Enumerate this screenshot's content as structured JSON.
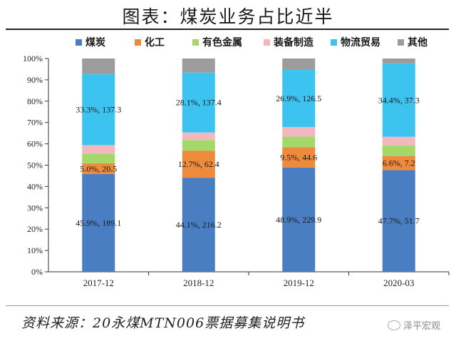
{
  "title": "图表：煤炭业务占比近半",
  "source": "资料来源：20永煤MTN006票据募集说明书",
  "brand": "泽平宏观",
  "chart_data": {
    "type": "bar",
    "stacked": true,
    "categories": [
      "2017-12",
      "2018-12",
      "2019-12",
      "2020-03"
    ],
    "ylim": [
      0,
      100
    ],
    "yticks": [
      "0%",
      "10%",
      "20%",
      "30%",
      "40%",
      "50%",
      "60%",
      "70%",
      "80%",
      "90%",
      "100%"
    ],
    "legend_position": "top",
    "series": [
      {
        "name": "煤炭",
        "color": "#4a7ec2",
        "values": [
          45.9,
          44.1,
          48.9,
          47.7
        ],
        "labels": [
          "45.9%, 189.1",
          "44.1%, 216.2",
          "48.9%, 229.9",
          "47.7%, 51.7"
        ]
      },
      {
        "name": "化工",
        "color": "#ed8a3c",
        "values": [
          5.0,
          12.7,
          9.5,
          6.6
        ],
        "labels": [
          "5.0%, 20.5",
          "12.7%, 62.4",
          "9.5%, 44.6",
          "6.6%, 7.2"
        ]
      },
      {
        "name": "有色金属",
        "color": "#a4d86a",
        "values": [
          4.5,
          5.0,
          5.0,
          5.0
        ],
        "labels": [
          "",
          "",
          "",
          ""
        ]
      },
      {
        "name": "装备制造",
        "color": "#f2b8bd",
        "values": [
          4.0,
          3.5,
          4.5,
          4.0
        ],
        "labels": [
          "",
          "",
          "",
          ""
        ]
      },
      {
        "name": "物流贸易",
        "color": "#3cc3f0",
        "values": [
          33.3,
          28.1,
          26.9,
          34.4
        ],
        "labels": [
          "33.3%, 137.3",
          "28.1%, 137.4",
          "26.9%, 126.5",
          "34.4%, 37.3"
        ]
      },
      {
        "name": "其他",
        "color": "#9c9c9c",
        "values": [
          7.3,
          6.6,
          5.2,
          2.3
        ],
        "labels": [
          "",
          "",
          "",
          ""
        ]
      }
    ]
  }
}
